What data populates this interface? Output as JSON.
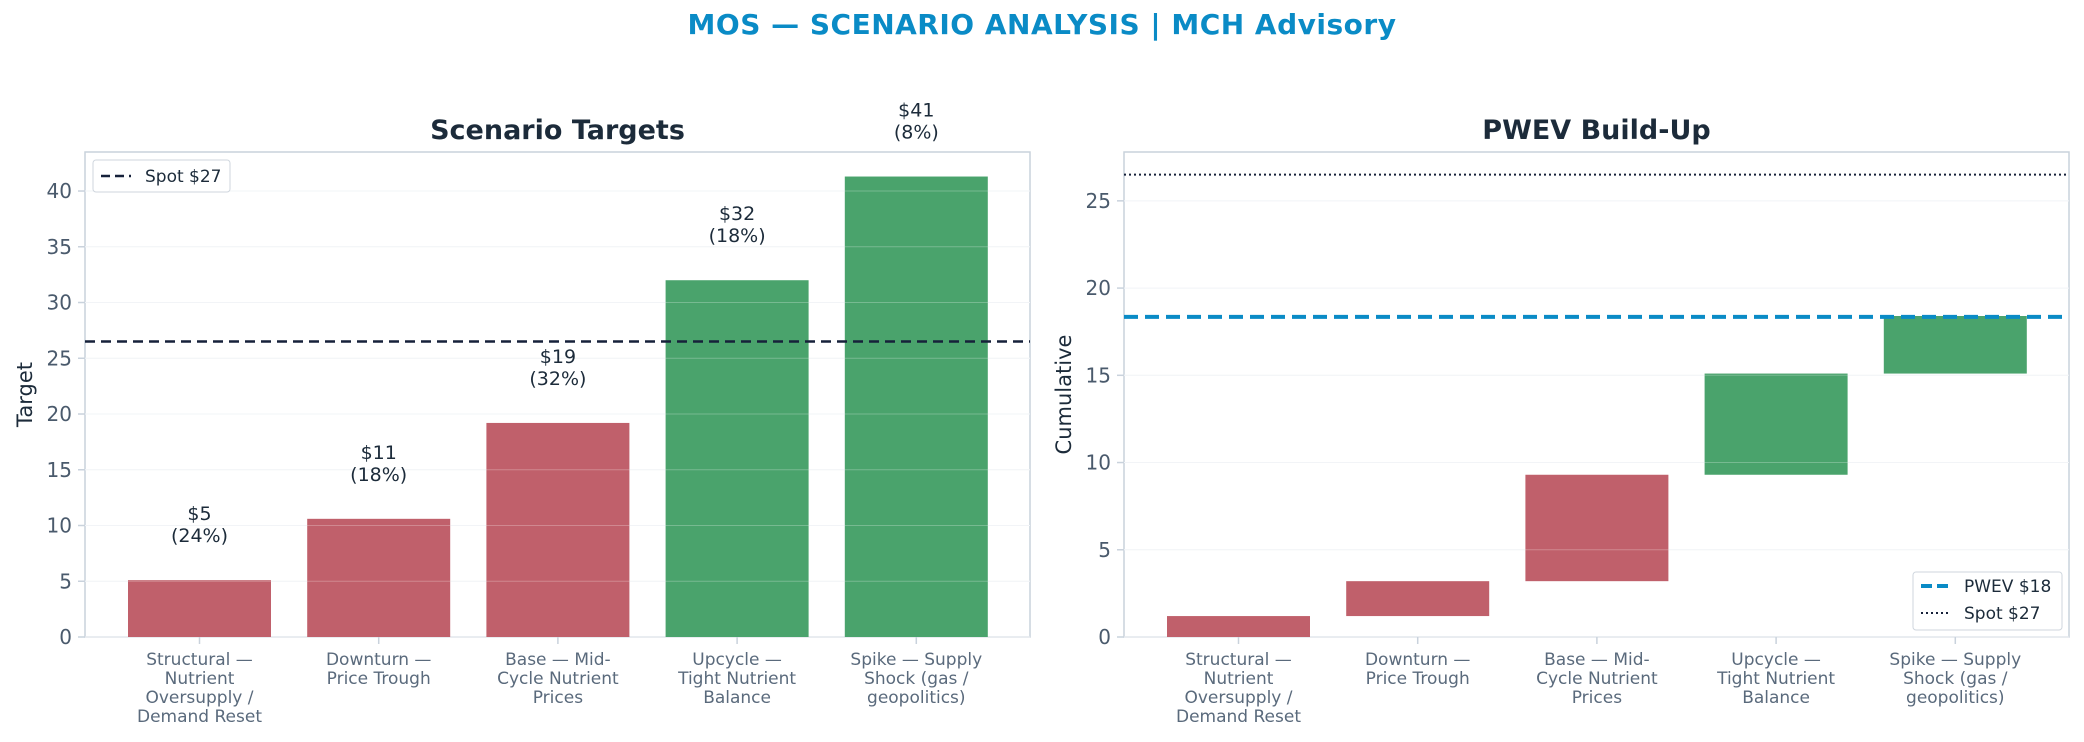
{
  "title": "MOS — SCENARIO ANALYSIS | MCH Advisory",
  "colors": {
    "title": "#0a8bc6",
    "bear": "#c0606b",
    "bull": "#4aa36c",
    "pwev": "#0a8bc6",
    "spot": "#16213a"
  },
  "chart_data": [
    {
      "type": "bar",
      "title": "Scenario Targets",
      "ylabel": "Target",
      "xlabel": "",
      "ylim": [
        0,
        43.5
      ],
      "yticks": [
        0,
        5,
        10,
        15,
        20,
        25,
        30,
        35,
        40
      ],
      "categories": [
        [
          "Structural —",
          "Nutrient",
          "Oversupply /",
          "Demand Reset"
        ],
        [
          "Downturn —",
          "Price Trough"
        ],
        [
          "Base — Mid-",
          "Cycle Nutrient",
          "Prices"
        ],
        [
          "Upcycle —",
          "Tight Nutrient",
          "Balance"
        ],
        [
          "Spike — Supply",
          "Shock (gas /",
          "geopolitics)"
        ]
      ],
      "values": [
        5.1,
        10.6,
        19.2,
        32.0,
        41.3
      ],
      "bar_colors": [
        "bear",
        "bear",
        "bear",
        "bull",
        "bull"
      ],
      "data_labels": [
        [
          "$5",
          "(24%)"
        ],
        [
          "$11",
          "(18%)"
        ],
        [
          "$19",
          "(32%)"
        ],
        [
          "$32",
          "(18%)"
        ],
        [
          "$41",
          "(8%)"
        ]
      ],
      "reference_line": {
        "value": 26.5,
        "label": "Spot $27",
        "style": "dashed"
      },
      "legend": {
        "placement": "top-left",
        "entries": [
          "Spot $27"
        ]
      },
      "grid": true
    },
    {
      "type": "bar",
      "subtype": "waterfall",
      "title": "PWEV Build-Up",
      "ylabel": "Cumulative",
      "xlabel": "",
      "ylim": [
        0,
        27.8
      ],
      "yticks": [
        0,
        5,
        10,
        15,
        20,
        25
      ],
      "categories": [
        [
          "Structural —",
          "Nutrient",
          "Oversupply /",
          "Demand Reset"
        ],
        [
          "Downturn —",
          "Price Trough"
        ],
        [
          "Base — Mid-",
          "Cycle Nutrient",
          "Prices"
        ],
        [
          "Upcycle —",
          "Tight Nutrient",
          "Balance"
        ],
        [
          "Spike — Supply",
          "Shock (gas /",
          "geopolitics)"
        ]
      ],
      "segments": [
        {
          "start": 0.0,
          "end": 1.2
        },
        {
          "start": 1.2,
          "end": 3.2
        },
        {
          "start": 3.2,
          "end": 9.3
        },
        {
          "start": 9.3,
          "end": 15.1
        },
        {
          "start": 15.1,
          "end": 18.4
        }
      ],
      "bar_colors": [
        "bear",
        "bear",
        "bear",
        "bull",
        "bull"
      ],
      "reference_lines": [
        {
          "value": 18.35,
          "label": "PWEV $18",
          "style": "dashed"
        },
        {
          "value": 26.5,
          "label": "Spot $27",
          "style": "dotted"
        }
      ],
      "legend": {
        "placement": "bottom-right",
        "entries": [
          "PWEV $18",
          "Spot $27"
        ]
      },
      "grid": true
    }
  ]
}
